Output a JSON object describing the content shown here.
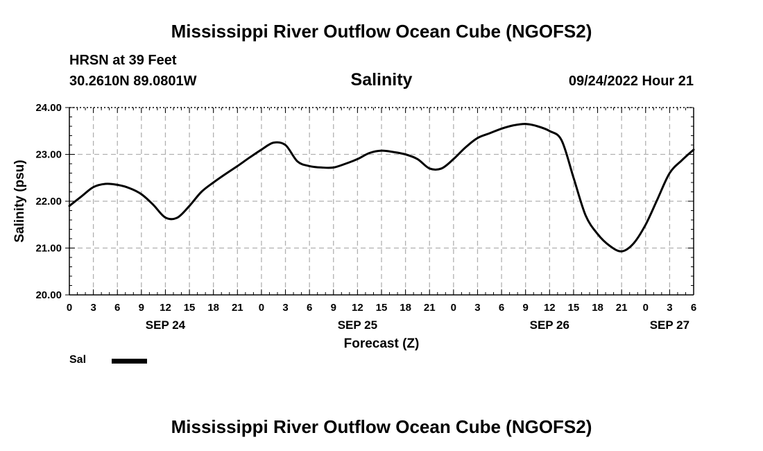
{
  "header": {
    "title": "Mississippi River Outflow Ocean Cube (NGOFS2)",
    "station": "HRSN at 39 Feet",
    "coordinates": "30.2610N  89.0801W",
    "timestamp": "09/24/2022 Hour 21"
  },
  "footer": {
    "title": "Mississippi River Outflow Ocean Cube (NGOFS2)"
  },
  "legend": {
    "items": [
      {
        "label": "Sal",
        "color": "#000000"
      }
    ]
  },
  "chart_data": {
    "type": "line",
    "title": "Salinity",
    "xlabel": "Forecast (Z)",
    "ylabel": "Salinity (psu)",
    "ylim": [
      20,
      24
    ],
    "y_ticks": [
      "20.00",
      "21.00",
      "22.00",
      "23.00",
      "24.00"
    ],
    "xlim_hours": [
      0,
      78
    ],
    "x_tick_labels": [
      "0",
      "3",
      "6",
      "9",
      "12",
      "15",
      "18",
      "21",
      "0",
      "3",
      "6",
      "9",
      "12",
      "15",
      "18",
      "21",
      "0",
      "3",
      "6",
      "9",
      "12",
      "15",
      "18",
      "21",
      "0",
      "3",
      "6"
    ],
    "date_labels": [
      {
        "label": "SEP 24",
        "hour": 12
      },
      {
        "label": "SEP 25",
        "hour": 36
      },
      {
        "label": "SEP 26",
        "hour": 60
      },
      {
        "label": "SEP 27",
        "hour": 75
      }
    ],
    "grid": true,
    "series": [
      {
        "name": "Sal",
        "color": "#000000",
        "x": [
          0,
          1.5,
          3,
          4.5,
          6,
          7.5,
          9,
          10.5,
          12,
          13.5,
          15,
          16.5,
          18,
          19.5,
          21,
          22.5,
          24,
          25.5,
          27,
          28.5,
          30,
          31.5,
          33,
          34.5,
          36,
          37.5,
          39,
          40.5,
          42,
          43.5,
          45,
          46.5,
          48,
          49.5,
          51,
          52.5,
          54,
          55.5,
          57,
          58.5,
          60,
          61.5,
          63,
          64.5,
          66,
          67.5,
          69,
          70.5,
          72,
          73.5,
          75,
          76.5,
          78
        ],
        "y": [
          21.9,
          22.1,
          22.3,
          22.37,
          22.35,
          22.28,
          22.15,
          21.92,
          21.65,
          21.65,
          21.9,
          22.2,
          22.4,
          22.58,
          22.75,
          22.93,
          23.1,
          23.25,
          23.2,
          22.85,
          22.75,
          22.72,
          22.72,
          22.8,
          22.9,
          23.03,
          23.08,
          23.05,
          23.0,
          22.9,
          22.7,
          22.7,
          22.9,
          23.15,
          23.35,
          23.45,
          23.55,
          23.62,
          23.65,
          23.6,
          23.5,
          23.3,
          22.5,
          21.7,
          21.3,
          21.05,
          20.93,
          21.1,
          21.5,
          22.05,
          22.6,
          22.87,
          23.1
        ]
      }
    ]
  }
}
